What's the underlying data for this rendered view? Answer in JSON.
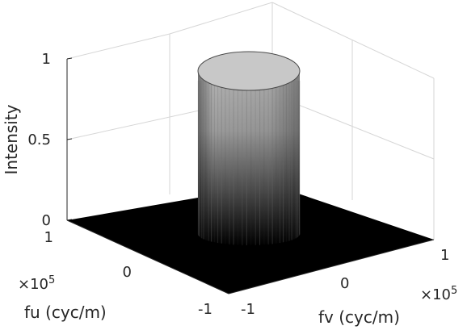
{
  "chart_data": {
    "type": "surface",
    "description_values": {
      "surface": "circular low-pass (ideal) filter: Intensity = 1 inside cutoff radius, 0 outside",
      "cutoff_radius": 0.5,
      "cutoff_radius_units": "x10^5 cyc/m"
    },
    "axes": {
      "fu": {
        "label": "fu (cyc/m)",
        "range": [
          -1,
          1
        ],
        "ticks": [
          1,
          0,
          -1
        ],
        "tick_labels": [
          "1",
          "0",
          "-1"
        ],
        "exponent": "×10",
        "exponent_power": "5"
      },
      "fv": {
        "label": "fv (cyc/m)",
        "range": [
          -1,
          1
        ],
        "ticks": [
          -1,
          0,
          1
        ],
        "tick_labels": [
          "-1",
          "0",
          "1"
        ],
        "exponent": "×10",
        "exponent_power": "5"
      },
      "intensity": {
        "label": "Intensity",
        "range": [
          0,
          1
        ],
        "ticks": [
          0,
          0.5,
          1
        ],
        "tick_labels": [
          "0",
          "0.5",
          "1"
        ]
      }
    },
    "colormap": "gray",
    "grid": true
  }
}
